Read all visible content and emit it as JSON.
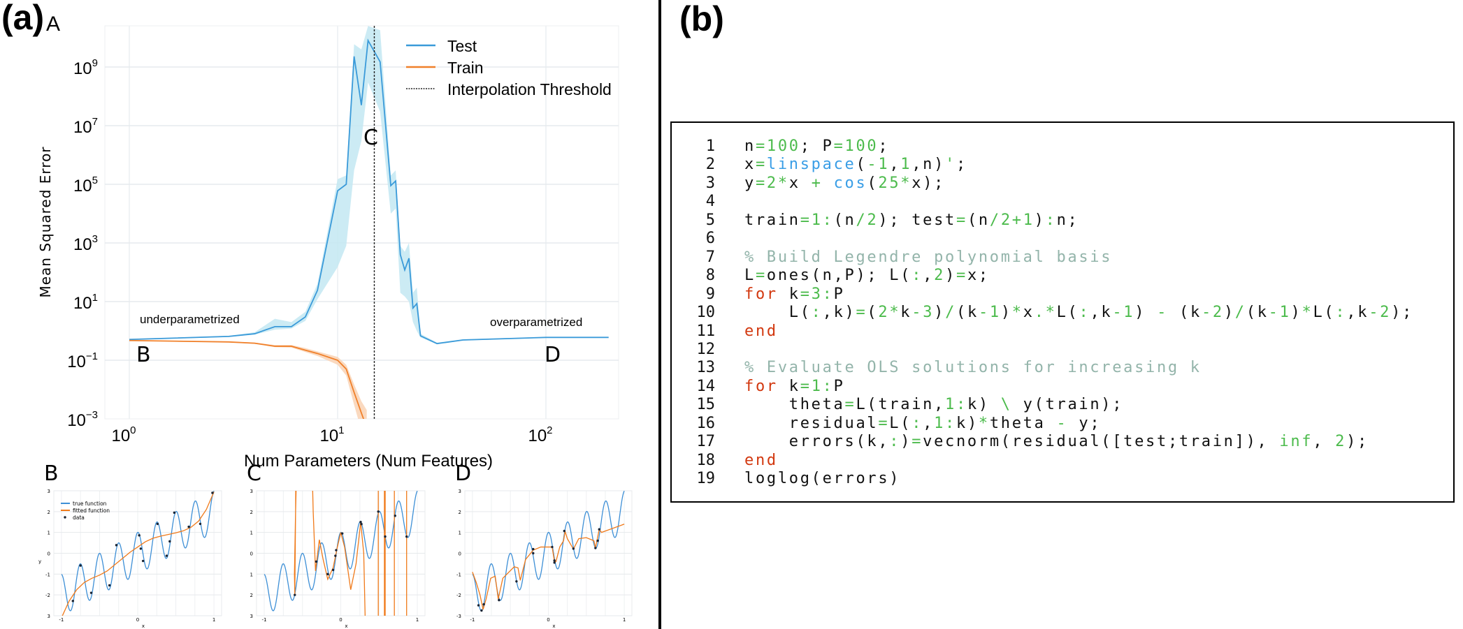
{
  "panel_labels": {
    "a": "(a)",
    "b": "(b)"
  },
  "chart_data": [
    {
      "type": "line",
      "panel": "A",
      "xscale": "log",
      "yscale": "log",
      "xlabel": "Num  Parameters (Num Features)",
      "ylabel": "Mean Squared Error",
      "xlim": [
        0.76,
        290
      ],
      "ylim": [
        0.001,
        25000000000
      ],
      "x_ticks": [
        {
          "base": "10",
          "exp": "0",
          "value": 1
        },
        {
          "base": "10",
          "exp": "1",
          "value": 10
        },
        {
          "base": "10",
          "exp": "2",
          "value": 100
        }
      ],
      "y_ticks": [
        {
          "base": "10",
          "exp": "9",
          "value": 1000000000.0
        },
        {
          "base": "10",
          "exp": "7",
          "value": 10000000.0
        },
        {
          "base": "10",
          "exp": "5",
          "value": 100000.0
        },
        {
          "base": "10",
          "exp": "3",
          "value": 1000.0
        },
        {
          "base": "10",
          "exp": "1",
          "value": 10
        },
        {
          "base": "10",
          "exp": "−1",
          "value": 0.1
        },
        {
          "base": "10",
          "exp": "−3",
          "value": 0.001
        }
      ],
      "grid": true,
      "legend_position": "top-right",
      "series": [
        {
          "name": "Test",
          "color": "#3a9ad9",
          "band_color": "#c3e8f2",
          "x": [
            1,
            3,
            4,
            5,
            6,
            7,
            8,
            10,
            11,
            12,
            13,
            14,
            16,
            18,
            19,
            20,
            21,
            22,
            23,
            24,
            25,
            30,
            40,
            100,
            200
          ],
          "y": [
            0.51,
            0.65,
            0.8,
            1.4,
            1.4,
            3,
            24,
            60000,
            100000,
            2300000000,
            50000000,
            8000000000,
            1500000000,
            90000,
            130000,
            400,
            120,
            300,
            6,
            8.5,
            0.68,
            0.37,
            0.49,
            0.6,
            0.6
          ],
          "band_low": [
            0.5,
            0.62,
            0.75,
            1.1,
            1.2,
            2.2,
            12,
            150,
            800,
            300000,
            3000000,
            300000000,
            30000000,
            10000,
            15000,
            20,
            15,
            10,
            2,
            1,
            0.6,
            0.35,
            0.47,
            0.58,
            0.58
          ],
          "band_high": [
            0.53,
            0.68,
            0.9,
            2.6,
            2.0,
            4.5,
            40,
            150000,
            200000,
            6000000000,
            4000000000,
            25000000000,
            18000000000,
            200000,
            300000,
            800,
            500,
            1000,
            20,
            30,
            0.8,
            0.4,
            0.52,
            0.62,
            0.62
          ]
        },
        {
          "name": "Train",
          "color": "#f0802a",
          "band_color": "#f9d2b4",
          "x": [
            1,
            3,
            4,
            5,
            6,
            7,
            8,
            10,
            11,
            12,
            13,
            13.8
          ],
          "y": [
            0.47,
            0.42,
            0.38,
            0.3,
            0.3,
            0.22,
            0.17,
            0.1,
            0.05,
            0.008,
            0.0016,
            0.0005
          ],
          "band_low": [
            0.46,
            0.41,
            0.36,
            0.28,
            0.27,
            0.19,
            0.14,
            0.07,
            0.03,
            0.003,
            0.0004,
            0.0001
          ],
          "band_high": [
            0.48,
            0.43,
            0.4,
            0.33,
            0.33,
            0.26,
            0.2,
            0.13,
            0.07,
            0.015,
            0.004,
            0.002
          ]
        }
      ],
      "threshold": {
        "name": "Interpolation Threshold",
        "x": 15,
        "color": "#222222"
      },
      "annotations": [
        {
          "id": "underparametrized",
          "text": "underparametrized"
        },
        {
          "id": "overparametrized",
          "text": "overparametrized"
        },
        {
          "id": "B",
          "text": "B"
        },
        {
          "id": "C",
          "text": "C"
        },
        {
          "id": "D",
          "text": "D"
        }
      ],
      "title": "A"
    },
    {
      "type": "line",
      "panel": "B",
      "title": "B",
      "xlabel": "x",
      "ylabel": "y",
      "xlim": [
        -1.1,
        1.1
      ],
      "ylim": [
        -3,
        3
      ],
      "x_tick_labels": [
        "-1",
        "0",
        "1"
      ],
      "y_tick_labels": [
        "3",
        "2",
        "1",
        "0",
        "-1",
        "-2",
        "3"
      ],
      "legend": [
        "true function",
        "fitted function",
        "data"
      ],
      "true_function": "2*x + cos(25*x)",
      "fitted": {
        "x": [
          -1,
          -0.9,
          -0.8,
          -0.7,
          -0.6,
          -0.5,
          -0.4,
          -0.3,
          -0.2,
          -0.1,
          0,
          0.1,
          0.2,
          0.3,
          0.4,
          0.5,
          0.6,
          0.7,
          0.8,
          0.9,
          1
        ],
        "y": [
          -3.1,
          -2.3,
          -1.75,
          -1.4,
          -1.2,
          -1.05,
          -0.85,
          -0.55,
          -0.25,
          0.05,
          0.3,
          0.55,
          0.72,
          0.82,
          0.9,
          0.98,
          1.08,
          1.25,
          1.55,
          2.1,
          2.95
        ]
      },
      "data": {
        "x": [
          -0.85,
          -0.75,
          -0.61,
          -0.37,
          -0.28,
          0.02,
          0.04,
          0.07,
          0.26,
          0.38,
          0.42,
          0.48,
          0.67,
          0.82,
          0.98
        ],
        "y": [
          -2.29,
          -0.59,
          -1.9,
          -1.54,
          0.39,
          0.86,
          0.22,
          -0.37,
          1.41,
          -0.12,
          0.57,
          1.95,
          1.27,
          1.41,
          2.9
        ]
      }
    },
    {
      "type": "line",
      "panel": "C",
      "title": "C",
      "xlabel": "x",
      "xlim": [
        -1.1,
        1.1
      ],
      "ylim": [
        -3,
        3
      ],
      "x_tick_labels": [
        "-1",
        "0",
        "1"
      ],
      "y_tick_labels": [
        "3",
        "2",
        "1",
        "0",
        "1",
        "2",
        "3"
      ],
      "true_function": "2*x + cos(25*x)",
      "fitted": {
        "x": [
          -0.585,
          -0.59,
          -0.6,
          -0.605,
          -0.59,
          -0.57,
          -0.38,
          -0.36,
          -0.33,
          -0.28,
          -0.23,
          -0.17,
          -0.1,
          -0.05,
          0,
          0.05,
          0.13,
          0.2,
          0.26,
          0.3,
          0.33
        ],
        "y": [
          5,
          2,
          -2,
          -1,
          2,
          5,
          5,
          2,
          -0.85,
          0.65,
          -0.3,
          -1.25,
          -0.7,
          0.2,
          1.0,
          0.3,
          -1.75,
          -0.5,
          1.5,
          0,
          -5
        ]
      },
      "spikes_x": [
        0.49,
        0.57,
        0.58,
        0.7,
        0.86
      ],
      "data": {
        "x": [
          -0.6,
          -0.32,
          -0.17,
          -0.1,
          -0.06,
          -0.07,
          0.02,
          0.26,
          0.27,
          0.49,
          0.58,
          0.71,
          0.86
        ],
        "y": [
          -2,
          -0.4,
          -1,
          -0.8,
          0.15,
          -0.12,
          0.95,
          1.5,
          1.4,
          2,
          0.8,
          1.8,
          0.8
        ]
      }
    },
    {
      "type": "line",
      "panel": "D",
      "title": "D",
      "xlabel": "x",
      "xlim": [
        -1.1,
        1.1
      ],
      "ylim": [
        -3,
        3
      ],
      "x_tick_labels": [
        "-1",
        "0",
        "1"
      ],
      "y_tick_labels": [
        "3",
        "2",
        "1",
        "0",
        "-1",
        "-2",
        "-3"
      ],
      "true_function": "2*x + cos(25*x)",
      "fitted": {
        "x": [
          -1,
          -0.95,
          -0.9,
          -0.86,
          -0.82,
          -0.76,
          -0.7,
          -0.66,
          -0.6,
          -0.45,
          -0.4,
          -0.37,
          -0.3,
          -0.2,
          -0.1,
          0.05,
          0.08,
          0.1,
          0.15,
          0.2,
          0.22,
          0.25,
          0.33,
          0.4,
          0.5,
          0.6,
          0.62,
          0.67,
          0.7,
          1
        ],
        "y": [
          -0.9,
          -1.4,
          -2.0,
          -2.7,
          -2.2,
          -1.2,
          -1.1,
          -2.2,
          -1.2,
          -0.65,
          -0.7,
          -1.3,
          -0.3,
          0.15,
          0.3,
          0.3,
          -0.4,
          -0.4,
          0.3,
          0.6,
          1.05,
          0.7,
          0.2,
          0.7,
          0.75,
          0.6,
          0.25,
          1.15,
          1.0,
          1.4
        ]
      },
      "data": {
        "x": [
          -0.92,
          -0.88,
          -0.85,
          -0.65,
          -0.42,
          -0.2,
          -0.2,
          0.05,
          0.08,
          0.08,
          0.21,
          0.33,
          0.62,
          0.65,
          0.67
        ],
        "y": [
          -2.5,
          -2.75,
          -2.45,
          -2.25,
          -1.35,
          0.2,
          0.0,
          0.3,
          -0.35,
          -0.45,
          1.07,
          0.22,
          0.25,
          0.6,
          1.15
        ]
      }
    }
  ],
  "code": {
    "colors": {
      "keyword": "#d2380f",
      "function": "#3a9ee6",
      "number": "#4cbb4c",
      "comment": "#93b4aa"
    },
    "lines": [
      "n=100; P=100;",
      "x=linspace(-1,1,n)';",
      "y=2*x + cos(25*x);",
      "",
      "train=1:(n/2); test=(n/2+1):n;",
      "",
      "% Build Legendre polynomial basis",
      "L=ones(n,P); L(:,2)=x;",
      "for k=3:P",
      "    L(:,k)=(2*k-3)/(k-1)*x.*L(:,k-1) - (k-2)/(k-1)*L(:,k-2);",
      "end",
      "",
      "% Evaluate OLS solutions for increasing k",
      "for k=1:P",
      "    theta=L(train,1:k) \\ y(train);",
      "    residual=L(:,1:k)*theta - y;",
      "    errors(k,:)=vecnorm(residual([test;train]), inf, 2);",
      "end",
      "loglog(errors)"
    ]
  }
}
